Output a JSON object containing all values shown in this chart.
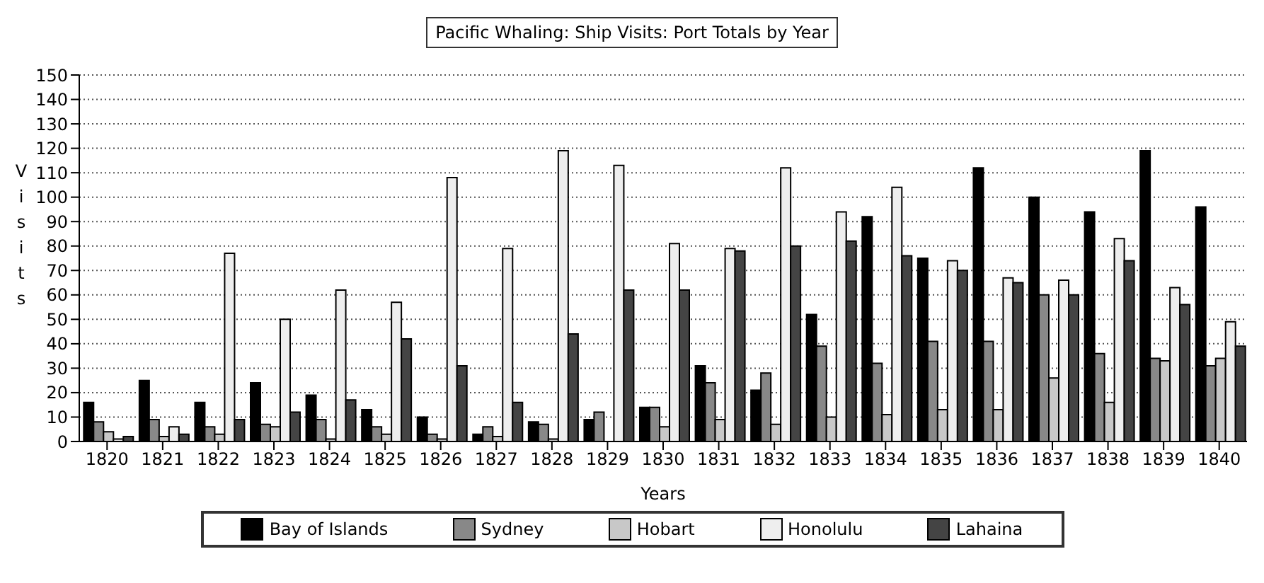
{
  "chart_data": {
    "type": "bar",
    "title": "Pacific Whaling: Ship Visits: Port Totals by Year",
    "xlabel": "Years",
    "ylabel": "Visits",
    "categories": [
      "1820",
      "1821",
      "1822",
      "1823",
      "1824",
      "1825",
      "1826",
      "1827",
      "1828",
      "1829",
      "1830",
      "1831",
      "1832",
      "1833",
      "1834",
      "1835",
      "1836",
      "1837",
      "1838",
      "1839",
      "1840"
    ],
    "series": [
      {
        "name": "Bay of Islands",
        "color": "#000000",
        "values": [
          16,
          25,
          16,
          24,
          19,
          13,
          10,
          3,
          8,
          9,
          14,
          31,
          21,
          52,
          92,
          75,
          112,
          100,
          94,
          119,
          96
        ]
      },
      {
        "name": "Sydney",
        "color": "#888888",
        "values": [
          8,
          9,
          6,
          7,
          9,
          6,
          3,
          6,
          7,
          12,
          14,
          24,
          28,
          39,
          32,
          41,
          41,
          60,
          36,
          34,
          31
        ]
      },
      {
        "name": "Hobart",
        "color": "#c8c8c8",
        "values": [
          4,
          2,
          3,
          6,
          1,
          3,
          1,
          2,
          1,
          0,
          6,
          9,
          7,
          10,
          11,
          13,
          13,
          26,
          16,
          33,
          34
        ]
      },
      {
        "name": "Honolulu",
        "color": "#eeeeee",
        "values": [
          1,
          6,
          77,
          50,
          62,
          57,
          108,
          79,
          119,
          113,
          81,
          79,
          112,
          94,
          104,
          74,
          67,
          66,
          83,
          63,
          49
        ]
      },
      {
        "name": "Lahaina",
        "color": "#444444",
        "values": [
          2,
          3,
          9,
          12,
          17,
          42,
          31,
          16,
          44,
          62,
          62,
          78,
          80,
          82,
          76,
          70,
          65,
          60,
          74,
          56,
          39
        ]
      }
    ],
    "ylim": [
      0,
      150
    ],
    "yticks": [
      0,
      10,
      20,
      30,
      40,
      50,
      60,
      70,
      80,
      90,
      100,
      110,
      120,
      130,
      140,
      150
    ],
    "grid": "y",
    "legend": "bottom"
  }
}
